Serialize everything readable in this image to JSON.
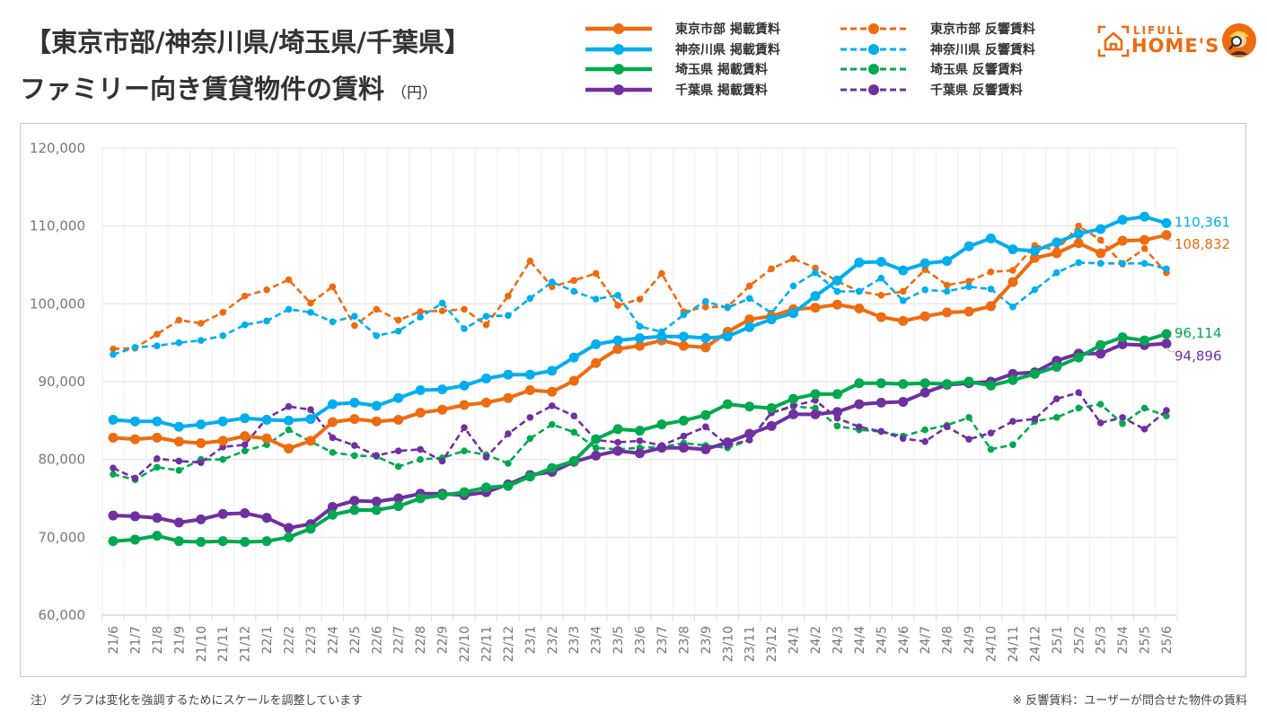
{
  "header": {
    "title_line1": "【東京市部/神奈川県/埼玉県/千葉県】",
    "title_line2": "ファミリー向き賃貸物件の賃料",
    "title_unit": "（円）"
  },
  "logo": {
    "brand_top": "LIFULL",
    "brand_bottom": "HOME'S",
    "icons": [
      "house-frame-icon",
      "mascot-icon"
    ],
    "color": "#EE6B10"
  },
  "legend": [
    {
      "label": "東京市部 掲載賃料",
      "style": "solid",
      "color": "#EE6B10"
    },
    {
      "label": "神奈川県 掲載賃料",
      "style": "solid",
      "color": "#00AEEF"
    },
    {
      "label": "埼玉県 掲載賃料",
      "style": "solid",
      "color": "#00A94F"
    },
    {
      "label": "千葉県 掲載賃料",
      "style": "solid",
      "color": "#7030A0"
    },
    {
      "label": "東京市部 反響賃料",
      "style": "dashed",
      "color": "#EE6B10"
    },
    {
      "label": "神奈川県 反響賃料",
      "style": "dashed",
      "color": "#00AEEF"
    },
    {
      "label": "埼玉県 反響賃料",
      "style": "dashed",
      "color": "#00A94F"
    },
    {
      "label": "千葉県 反響賃料",
      "style": "dashed",
      "color": "#7030A0"
    }
  ],
  "footer": {
    "note_left": "注）　グラフは変化を強調するためにスケールを調整しています",
    "note_right": "※ 反響賃料：ユーザーが問合せた物件の賃料"
  },
  "chart_data": {
    "type": "line",
    "title": "【東京市部/神奈川県/埼玉県/千葉県】ファミリー向き賃貸物件の賃料（円）",
    "xlabel": "",
    "ylabel": "",
    "ylim": [
      60000,
      120000
    ],
    "yticks": [
      60000,
      70000,
      80000,
      90000,
      100000,
      110000,
      120000
    ],
    "ytick_labels": [
      "60,000",
      "70,000",
      "80,000",
      "90,000",
      "100,000",
      "110,000",
      "120,000"
    ],
    "grid": true,
    "legend_position": "top-right",
    "categories": [
      "21/6",
      "21/7",
      "21/8",
      "21/9",
      "21/10",
      "21/11",
      "21/12",
      "22/1",
      "22/2",
      "22/3",
      "22/4",
      "22/5",
      "22/6",
      "22/7",
      "22/8",
      "22/9",
      "22/10",
      "22/11",
      "22/12",
      "23/1",
      "23/2",
      "23/3",
      "23/4",
      "23/5",
      "23/6",
      "23/7",
      "23/8",
      "23/9",
      "23/10",
      "23/11",
      "23/12",
      "24/1",
      "24/2",
      "24/3",
      "24/4",
      "24/5",
      "24/6",
      "24/7",
      "24/8",
      "24/9",
      "24/10",
      "24/11",
      "24/12",
      "25/1",
      "25/2",
      "25/3",
      "25/4",
      "25/5",
      "25/6"
    ],
    "series": [
      {
        "name": "東京市部 反響賃料",
        "style": "dashed",
        "color": "#EE6B10",
        "values": [
          94200,
          94300,
          96100,
          97900,
          97500,
          98900,
          101000,
          101800,
          103100,
          100100,
          102200,
          97200,
          99300,
          97900,
          99000,
          99100,
          99300,
          97300,
          101000,
          105500,
          102200,
          103000,
          103900,
          99800,
          100600,
          103900,
          99000,
          99600,
          99600,
          102300,
          104500,
          105800,
          104600,
          102900,
          101600,
          101100,
          101600,
          104400,
          102400,
          102900,
          104100,
          104300,
          107500,
          106900,
          110000,
          108200,
          105100,
          107100,
          104000
        ]
      },
      {
        "name": "神奈川県 反響賃料",
        "style": "dashed",
        "color": "#00AEEF",
        "values": [
          93500,
          94400,
          94600,
          95000,
          95300,
          95900,
          97300,
          97800,
          99300,
          98900,
          97700,
          98400,
          95900,
          96500,
          98300,
          100100,
          96800,
          98400,
          98500,
          100700,
          102800,
          101600,
          100600,
          101100,
          97100,
          96400,
          98600,
          100300,
          99500,
          100700,
          98800,
          102300,
          104000,
          101600,
          101600,
          103300,
          100400,
          101800,
          101600,
          102200,
          101900,
          99600,
          101800,
          104000,
          105300,
          105200,
          105200,
          105200,
          104500
        ]
      },
      {
        "name": "埼玉県 反響賃料",
        "style": "dashed",
        "color": "#00A94F",
        "values": [
          78100,
          77400,
          79000,
          78600,
          80000,
          80000,
          81100,
          81900,
          83800,
          82300,
          80900,
          80500,
          80400,
          79100,
          80000,
          80200,
          81100,
          80600,
          79500,
          82700,
          84500,
          83500,
          81500,
          81300,
          81500,
          81600,
          82100,
          81800,
          81500,
          82500,
          86000,
          86800,
          86600,
          84300,
          83800,
          83600,
          83000,
          83800,
          84400,
          85400,
          81300,
          81900,
          84900,
          85400,
          86600,
          87100,
          84600,
          86600,
          85600
        ]
      },
      {
        "name": "千葉県 反響賃料",
        "style": "dashed",
        "color": "#7030A0",
        "values": [
          78900,
          77600,
          80100,
          79800,
          79600,
          81600,
          81900,
          85300,
          86800,
          86400,
          82800,
          81800,
          80500,
          81100,
          81300,
          79800,
          84100,
          80300,
          83300,
          85400,
          86900,
          85600,
          82500,
          82200,
          82400,
          81800,
          83000,
          84200,
          81800,
          82500,
          86000,
          86900,
          87600,
          85300,
          84200,
          83600,
          82700,
          82300,
          84200,
          82600,
          83400,
          84900,
          85200,
          87800,
          88600,
          84700,
          85400,
          83900,
          86300
        ]
      },
      {
        "name": "千葉県 掲載賃料",
        "style": "solid",
        "color": "#7030A0",
        "end_label": "94,896",
        "values": [
          72800,
          72700,
          72500,
          71900,
          72300,
          73000,
          73100,
          72500,
          71200,
          71700,
          73900,
          74700,
          74600,
          75000,
          75600,
          75600,
          75400,
          75800,
          76800,
          78000,
          78400,
          79700,
          80500,
          81100,
          80800,
          81500,
          81500,
          81300,
          82200,
          83300,
          84300,
          85800,
          85800,
          86100,
          87100,
          87300,
          87400,
          88600,
          89600,
          89800,
          90000,
          91000,
          91200,
          92700,
          93600,
          93600,
          94800,
          94700,
          94896
        ]
      },
      {
        "name": "埼玉県 掲載賃料",
        "style": "solid",
        "color": "#00A94F",
        "end_label": "96,114",
        "values": [
          69500,
          69700,
          70200,
          69500,
          69400,
          69500,
          69400,
          69500,
          70000,
          71100,
          72900,
          73500,
          73500,
          74000,
          75000,
          75400,
          75800,
          76400,
          76600,
          77800,
          78900,
          79800,
          82600,
          83900,
          83700,
          84500,
          85000,
          85700,
          87100,
          86800,
          86600,
          87800,
          88400,
          88400,
          89800,
          89800,
          89700,
          89800,
          89700,
          90000,
          89500,
          90200,
          91000,
          91900,
          93100,
          94700,
          95700,
          95300,
          96114
        ]
      },
      {
        "name": "東京市部 掲載賃料",
        "style": "solid",
        "color": "#EE6B10",
        "end_label": "108,832",
        "values": [
          82800,
          82600,
          82800,
          82300,
          82100,
          82400,
          83000,
          82700,
          81400,
          82400,
          84800,
          85200,
          84900,
          85100,
          86000,
          86400,
          87000,
          87300,
          87900,
          88900,
          88700,
          90100,
          92400,
          94200,
          94600,
          95300,
          94600,
          94400,
          96400,
          98000,
          98400,
          99300,
          99500,
          99900,
          99400,
          98300,
          97800,
          98400,
          98900,
          99000,
          99700,
          102800,
          105900,
          106500,
          107800,
          106500,
          108100,
          108200,
          108832
        ]
      },
      {
        "name": "神奈川県 掲載賃料",
        "style": "solid",
        "color": "#00AEEF",
        "end_label": "110,361",
        "values": [
          85100,
          84900,
          84900,
          84200,
          84500,
          84900,
          85300,
          85100,
          85000,
          85200,
          87100,
          87300,
          86900,
          87900,
          88900,
          89000,
          89500,
          90400,
          90900,
          90900,
          91400,
          93100,
          94800,
          95300,
          95600,
          95800,
          95800,
          95600,
          95800,
          97000,
          98000,
          98800,
          101000,
          103000,
          105300,
          105400,
          104300,
          105200,
          105500,
          107400,
          108400,
          107000,
          106800,
          107900,
          109000,
          109600,
          110800,
          111200,
          110361
        ]
      }
    ]
  }
}
